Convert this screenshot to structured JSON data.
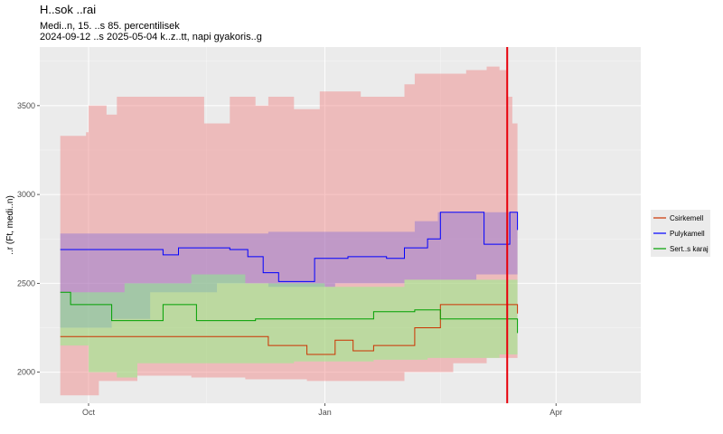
{
  "chart_data": {
    "type": "line",
    "title": "H..sok ..rai",
    "subtitle_lines": [
      "Medi..n, 15. ..s 85. percentilisek",
      "2024-09-12 ..s 2025-05-04 k..z..tt, napi gyakoris..g"
    ],
    "ylabel": "..r (Ft, medi..n)",
    "xlabel": "",
    "x_ticks": [
      {
        "date": "2024-10-01",
        "label": "Oct"
      },
      {
        "date": "2025-01-01",
        "label": "Jan"
      },
      {
        "date": "2025-04-01",
        "label": "Apr"
      }
    ],
    "x_range": [
      "2024-09-12",
      "2025-05-04"
    ],
    "y_ticks": [
      2000,
      2500,
      3000,
      3500
    ],
    "ylim": [
      1825,
      3830
    ],
    "grid": true,
    "legend_position": "right",
    "vline": {
      "date": "2025-03-13",
      "color": "#e8000b"
    },
    "series": [
      {
        "name": "Csirkemell",
        "color": "#cc3300",
        "band_color": "#f08080",
        "median": [
          [
            "2024-09-20",
            2200
          ],
          [
            "2024-12-01",
            2200
          ],
          [
            "2024-12-10",
            2150
          ],
          [
            "2024-12-20",
            2150
          ],
          [
            "2024-12-25",
            2100
          ],
          [
            "2025-01-02",
            2100
          ],
          [
            "2025-01-05",
            2180
          ],
          [
            "2025-01-12",
            2120
          ],
          [
            "2025-01-20",
            2150
          ],
          [
            "2025-01-28",
            2150
          ],
          [
            "2025-02-05",
            2250
          ],
          [
            "2025-02-12",
            2250
          ],
          [
            "2025-02-15",
            2380
          ],
          [
            "2025-03-16",
            2380
          ],
          [
            "2025-03-17",
            2330
          ]
        ],
        "upper": [
          [
            "2024-09-20",
            3330
          ],
          [
            "2024-09-30",
            3350
          ],
          [
            "2024-10-01",
            3500
          ],
          [
            "2024-10-08",
            3450
          ],
          [
            "2024-10-12",
            3550
          ],
          [
            "2024-11-10",
            3550
          ],
          [
            "2024-11-15",
            3400
          ],
          [
            "2024-11-22",
            3400
          ],
          [
            "2024-11-25",
            3550
          ],
          [
            "2024-12-05",
            3500
          ],
          [
            "2024-12-10",
            3550
          ],
          [
            "2024-12-20",
            3480
          ],
          [
            "2024-12-30",
            3580
          ],
          [
            "2025-01-15",
            3550
          ],
          [
            "2025-02-01",
            3620
          ],
          [
            "2025-02-05",
            3680
          ],
          [
            "2025-02-25",
            3700
          ],
          [
            "2025-03-05",
            3720
          ],
          [
            "2025-03-10",
            3700
          ],
          [
            "2025-03-13",
            3550
          ],
          [
            "2025-03-15",
            3400
          ],
          [
            "2025-03-17",
            3400
          ]
        ],
        "lower": [
          [
            "2024-09-20",
            1870
          ],
          [
            "2024-10-01",
            1870
          ],
          [
            "2024-10-05",
            1950
          ],
          [
            "2024-10-20",
            1980
          ],
          [
            "2024-11-10",
            1970
          ],
          [
            "2024-12-01",
            1960
          ],
          [
            "2024-12-25",
            1950
          ],
          [
            "2025-01-20",
            1950
          ],
          [
            "2025-02-01",
            2000
          ],
          [
            "2025-02-20",
            2050
          ],
          [
            "2025-03-05",
            2080
          ],
          [
            "2025-03-17",
            2100
          ]
        ]
      },
      {
        "name": "Pulykamell",
        "color": "#0000ff",
        "band_color": "#8a70d8",
        "median": [
          [
            "2024-09-20",
            2690
          ],
          [
            "2024-10-20",
            2690
          ],
          [
            "2024-10-30",
            2660
          ],
          [
            "2024-11-05",
            2700
          ],
          [
            "2024-11-25",
            2690
          ],
          [
            "2024-12-02",
            2650
          ],
          [
            "2024-12-08",
            2560
          ],
          [
            "2024-12-14",
            2510
          ],
          [
            "2024-12-25",
            2510
          ],
          [
            "2024-12-28",
            2640
          ],
          [
            "2025-01-10",
            2650
          ],
          [
            "2025-01-25",
            2640
          ],
          [
            "2025-02-01",
            2700
          ],
          [
            "2025-02-10",
            2750
          ],
          [
            "2025-02-15",
            2900
          ],
          [
            "2025-03-02",
            2900
          ],
          [
            "2025-03-04",
            2720
          ],
          [
            "2025-03-10",
            2720
          ],
          [
            "2025-03-14",
            2900
          ],
          [
            "2025-03-17",
            2800
          ]
        ],
        "upper": [
          [
            "2024-09-20",
            2780
          ],
          [
            "2024-11-30",
            2780
          ],
          [
            "2024-12-10",
            2790
          ],
          [
            "2025-01-31",
            2790
          ],
          [
            "2025-02-05",
            2850
          ],
          [
            "2025-02-14",
            2900
          ],
          [
            "2025-03-10",
            2900
          ],
          [
            "2025-03-17",
            2930
          ]
        ],
        "lower": [
          [
            "2024-09-20",
            2250
          ],
          [
            "2024-10-10",
            2300
          ],
          [
            "2024-10-25",
            2450
          ],
          [
            "2024-11-20",
            2500
          ],
          [
            "2024-12-10",
            2480
          ],
          [
            "2025-01-05",
            2500
          ],
          [
            "2025-02-01",
            2520
          ],
          [
            "2025-03-01",
            2550
          ],
          [
            "2025-03-17",
            2600
          ]
        ]
      },
      {
        "name": "Sert..s karaj",
        "color": "#00a000",
        "band_color": "#80ff80",
        "median": [
          [
            "2024-09-20",
            2450
          ],
          [
            "2024-09-24",
            2380
          ],
          [
            "2024-10-08",
            2380
          ],
          [
            "2024-10-10",
            2290
          ],
          [
            "2024-10-25",
            2290
          ],
          [
            "2024-10-30",
            2380
          ],
          [
            "2024-11-08",
            2380
          ],
          [
            "2024-11-12",
            2290
          ],
          [
            "2024-12-05",
            2300
          ],
          [
            "2024-12-25",
            2300
          ],
          [
            "2025-01-05",
            2300
          ],
          [
            "2025-01-20",
            2340
          ],
          [
            "2025-02-05",
            2350
          ],
          [
            "2025-02-15",
            2300
          ],
          [
            "2025-03-16",
            2300
          ],
          [
            "2025-03-17",
            2220
          ]
        ],
        "upper": [
          [
            "2024-09-20",
            2450
          ],
          [
            "2024-10-15",
            2500
          ],
          [
            "2024-11-10",
            2550
          ],
          [
            "2024-12-01",
            2500
          ],
          [
            "2025-01-01",
            2480
          ],
          [
            "2025-02-01",
            2520
          ],
          [
            "2025-03-17",
            2480
          ]
        ],
        "lower": [
          [
            "2024-09-20",
            2150
          ],
          [
            "2024-10-01",
            2000
          ],
          [
            "2024-10-12",
            1970
          ],
          [
            "2024-10-20",
            2050
          ],
          [
            "2024-11-20",
            2050
          ],
          [
            "2024-12-20",
            2060
          ],
          [
            "2025-01-20",
            2070
          ],
          [
            "2025-02-10",
            2080
          ],
          [
            "2025-03-10",
            2100
          ],
          [
            "2025-03-17",
            1960
          ]
        ]
      }
    ]
  }
}
